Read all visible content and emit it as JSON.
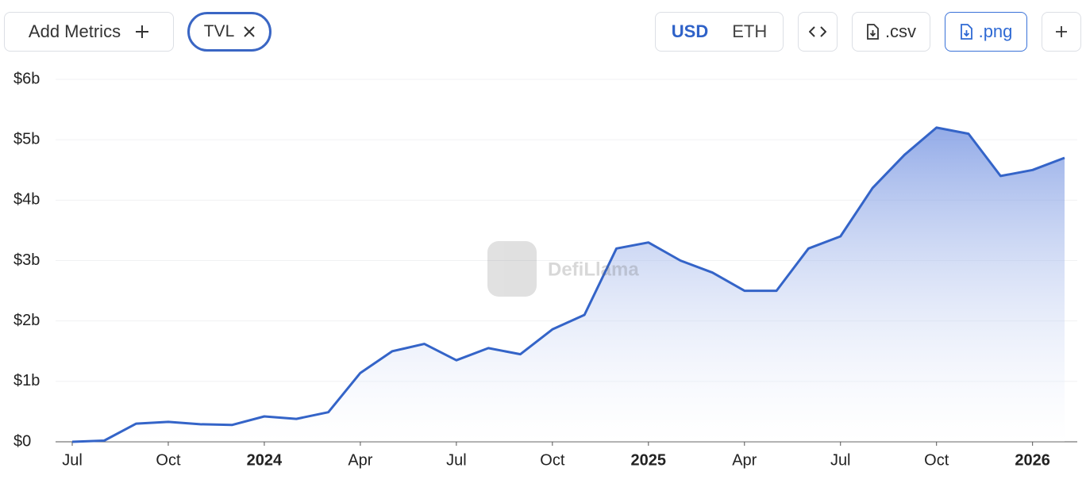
{
  "toolbar": {
    "add_metrics": "Add Metrics",
    "metric_tag": "TVL",
    "currency_options": [
      "USD",
      "ETH"
    ],
    "csv": ".csv",
    "png": ".png"
  },
  "chart_data": {
    "type": "area",
    "watermark": "DefiLlama",
    "color": "#3464c8",
    "x": [
      "2023-07",
      "2023-08",
      "2023-09",
      "2023-10",
      "2023-11",
      "2023-12",
      "2024-01",
      "2024-02",
      "2024-03",
      "2024-04",
      "2024-05",
      "2024-06",
      "2024-07",
      "2024-08",
      "2024-09",
      "2024-10",
      "2024-11",
      "2024-12",
      "2025-01",
      "2025-02",
      "2025-03",
      "2025-04",
      "2025-05",
      "2025-06",
      "2025-07",
      "2025-08",
      "2025-09",
      "2025-10",
      "2025-11",
      "2025-12",
      "2026-01",
      "2026-02"
    ],
    "values": [
      0,
      0.02,
      0.3,
      0.33,
      0.29,
      0.28,
      0.42,
      0.38,
      0.49,
      1.14,
      1.5,
      1.62,
      1.35,
      1.55,
      1.45,
      1.86,
      2.1,
      3.2,
      3.3,
      3.0,
      2.8,
      2.5,
      2.5,
      3.2,
      3.4,
      4.2,
      4.75,
      5.2,
      5.1,
      4.4,
      4.5,
      4.7
    ],
    "ylim": [
      0,
      6
    ],
    "yticks": [
      {
        "value": 0,
        "label": "$0"
      },
      {
        "value": 1,
        "label": "$1b"
      },
      {
        "value": 2,
        "label": "$2b"
      },
      {
        "value": 3,
        "label": "$3b"
      },
      {
        "value": 4,
        "label": "$4b"
      },
      {
        "value": 5,
        "label": "$5b"
      },
      {
        "value": 6,
        "label": "$6b"
      }
    ],
    "xticks": [
      {
        "value": "2023-07",
        "label": "Jul"
      },
      {
        "value": "2023-10",
        "label": "Oct"
      },
      {
        "value": "2024-01",
        "label": "2024"
      },
      {
        "value": "2024-04",
        "label": "Apr"
      },
      {
        "value": "2024-07",
        "label": "Jul"
      },
      {
        "value": "2024-10",
        "label": "Oct"
      },
      {
        "value": "2025-01",
        "label": "2025"
      },
      {
        "value": "2025-04",
        "label": "Apr"
      },
      {
        "value": "2025-07",
        "label": "Jul"
      },
      {
        "value": "2025-10",
        "label": "Oct"
      },
      {
        "value": "2026-01",
        "label": "2026"
      }
    ],
    "grid": true
  }
}
